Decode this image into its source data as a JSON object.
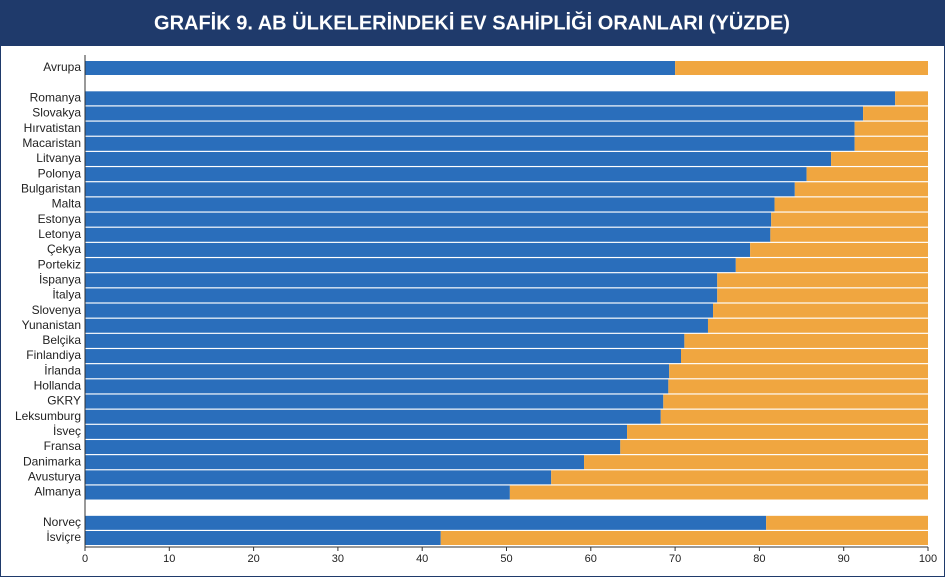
{
  "chart_data": {
    "type": "stacked_barh",
    "title": "GRAFİK 9. AB ÜLKELERİNDEKİ EV SAHİPLİĞİ ORANLARI (YÜZDE)",
    "categories": [
      "Avrupa",
      null,
      "Romanya",
      "Slovakya",
      "Hırvatistan",
      "Macaristan",
      "Litvanya",
      "Polonya",
      "Bulgaristan",
      "Malta",
      "Estonya",
      "Letonya",
      "Çekya",
      "Portekiz",
      "İspanya",
      "İtalya",
      "Slovenya",
      "Yunanistan",
      "Belçika",
      "Finlandiya",
      "İrlanda",
      "Hollanda",
      "GKRY",
      "Leksumburg",
      "İsveç",
      "Fransa",
      "Danimarka",
      "Avusturya",
      "Almanya",
      null,
      "Norveç",
      "İsviçre"
    ],
    "series": [
      {
        "color": "#2a6ebb",
        "values": [
          70.0,
          null,
          96.1,
          92.3,
          91.3,
          91.3,
          88.5,
          85.6,
          84.2,
          81.8,
          81.4,
          81.3,
          78.9,
          77.2,
          75.0,
          75.0,
          74.5,
          73.9,
          71.1,
          70.7,
          69.3,
          69.2,
          68.6,
          68.3,
          64.3,
          63.5,
          59.2,
          55.3,
          50.4,
          null,
          80.8,
          42.2
        ]
      },
      {
        "color": "#f0a640",
        "values": [
          30.0,
          null,
          3.9,
          7.7,
          8.7,
          8.7,
          11.5,
          14.4,
          15.8,
          18.2,
          18.6,
          18.7,
          21.1,
          22.8,
          25.0,
          25.0,
          25.5,
          26.1,
          28.9,
          29.3,
          30.7,
          30.8,
          31.4,
          31.7,
          35.7,
          36.5,
          40.8,
          44.7,
          49.6,
          null,
          19.2,
          57.8
        ]
      }
    ],
    "xlim": [
      0,
      100
    ],
    "xticks": [
      0,
      10,
      20,
      30,
      40,
      50,
      60,
      70,
      80,
      90,
      100
    ]
  }
}
